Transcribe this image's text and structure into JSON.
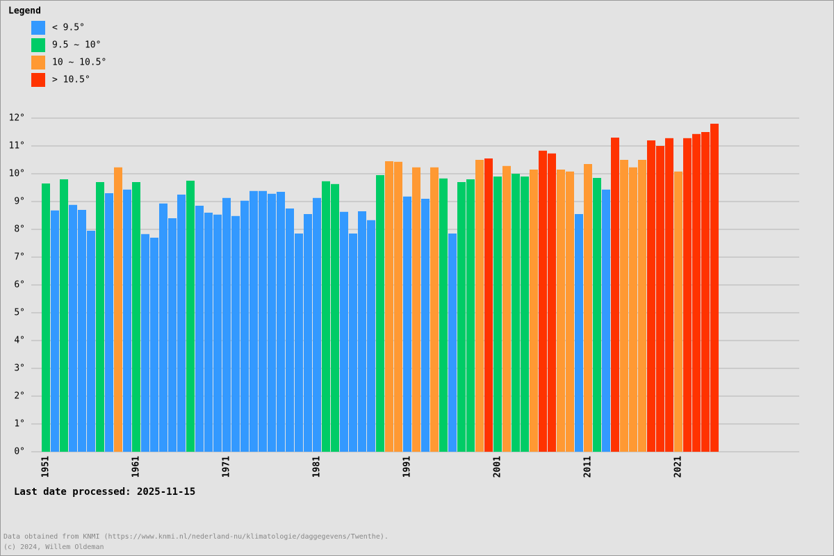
{
  "chart_data": {
    "type": "bar",
    "legend_title": "Legend",
    "note": "Last date processed: 2025-11-15",
    "footer": [
      "Data obtained from KNMI (https://www.knmi.nl/nederland-nu/klimatologie/daggegevens/Twenthe).",
      "(c) 2024, Willem Oldeman"
    ],
    "categories": [
      "1951",
      null,
      null,
      null,
      null,
      null,
      null,
      null,
      null,
      null,
      "1961",
      null,
      null,
      null,
      null,
      null,
      null,
      null,
      null,
      null,
      "1971",
      null,
      null,
      null,
      null,
      null,
      null,
      null,
      null,
      null,
      "1981",
      null,
      null,
      null,
      null,
      null,
      null,
      null,
      null,
      null,
      "1991",
      null,
      null,
      null,
      null,
      null,
      null,
      null,
      null,
      null,
      "2001",
      null,
      null,
      null,
      null,
      null,
      null,
      null,
      null,
      null,
      "2011",
      null,
      null,
      null,
      null,
      null,
      null,
      null,
      null,
      null,
      "2021",
      null,
      null,
      null,
      null
    ],
    "series": [
      {
        "name": "< 9.5°",
        "color": "#3399ff",
        "values": [
          null,
          8.68,
          null,
          8.88,
          8.7,
          7.95,
          null,
          9.3,
          null,
          9.43,
          null,
          7.83,
          7.7,
          8.93,
          8.4,
          9.25,
          null,
          8.85,
          8.6,
          8.53,
          9.13,
          8.48,
          9.03,
          9.38,
          9.38,
          9.28,
          9.35,
          8.75,
          7.85,
          8.55,
          9.13,
          null,
          null,
          8.63,
          7.85,
          8.65,
          8.33,
          null,
          null,
          null,
          9.18,
          null,
          9.1,
          null,
          null,
          7.85,
          null,
          null,
          null,
          null,
          null,
          null,
          null,
          null,
          null,
          null,
          null,
          null,
          null,
          8.55,
          null,
          null,
          9.43,
          null,
          null,
          null,
          null,
          null,
          null,
          null,
          null,
          null,
          null,
          null,
          null
        ]
      },
      {
        "name": "9.5 ~ 10°",
        "color": "#00cc66",
        "values": [
          9.65,
          null,
          9.8,
          null,
          null,
          null,
          9.7,
          null,
          null,
          null,
          9.7,
          null,
          null,
          null,
          null,
          null,
          9.75,
          null,
          null,
          null,
          null,
          null,
          null,
          null,
          null,
          null,
          null,
          null,
          null,
          null,
          null,
          9.73,
          9.63,
          null,
          null,
          null,
          null,
          9.95,
          null,
          null,
          null,
          null,
          null,
          null,
          9.83,
          null,
          9.7,
          9.8,
          null,
          null,
          9.9,
          null,
          10.0,
          9.9,
          null,
          null,
          null,
          null,
          null,
          null,
          null,
          9.85,
          null,
          null,
          null,
          null,
          null,
          null,
          null,
          null,
          null,
          null,
          null,
          null,
          null
        ]
      },
      {
        "name": "10 ~ 10.5°",
        "color": "#ff9933",
        "values": [
          null,
          null,
          null,
          null,
          null,
          null,
          null,
          null,
          10.23,
          null,
          null,
          null,
          null,
          null,
          null,
          null,
          null,
          null,
          null,
          null,
          null,
          null,
          null,
          null,
          null,
          null,
          null,
          null,
          null,
          null,
          null,
          null,
          null,
          null,
          null,
          null,
          null,
          null,
          10.45,
          10.43,
          null,
          10.23,
          null,
          10.23,
          null,
          null,
          null,
          null,
          10.5,
          null,
          null,
          10.28,
          null,
          null,
          10.15,
          null,
          null,
          10.15,
          10.08,
          null,
          10.35,
          null,
          null,
          null,
          10.5,
          10.23,
          10.5,
          null,
          null,
          null,
          10.08,
          null,
          null,
          null,
          null
        ]
      },
      {
        "name": "> 10.5°",
        "color": "#ff3300",
        "values": [
          null,
          null,
          null,
          null,
          null,
          null,
          null,
          null,
          null,
          null,
          null,
          null,
          null,
          null,
          null,
          null,
          null,
          null,
          null,
          null,
          null,
          null,
          null,
          null,
          null,
          null,
          null,
          null,
          null,
          null,
          null,
          null,
          null,
          null,
          null,
          null,
          null,
          null,
          null,
          null,
          null,
          null,
          null,
          null,
          null,
          null,
          null,
          null,
          null,
          10.55,
          null,
          null,
          null,
          null,
          null,
          10.83,
          10.73,
          null,
          null,
          null,
          null,
          null,
          null,
          11.3,
          null,
          null,
          null,
          11.2,
          11.0,
          11.28,
          null,
          11.28,
          11.43,
          11.5,
          11.8
        ]
      }
    ],
    "ylim": [
      0,
      12
    ],
    "yticks": [
      {
        "value": 0,
        "label": "0°"
      },
      {
        "value": 1,
        "label": "1°"
      },
      {
        "value": 2,
        "label": "2°"
      },
      {
        "value": 3,
        "label": "3°"
      },
      {
        "value": 4,
        "label": "4°"
      },
      {
        "value": 5,
        "label": "5°"
      },
      {
        "value": 6,
        "label": "6°"
      },
      {
        "value": 7,
        "label": "7°"
      },
      {
        "value": 8,
        "label": "8°"
      },
      {
        "value": 9,
        "label": "9°"
      },
      {
        "value": 10,
        "label": "10°"
      },
      {
        "value": 11,
        "label": "11°"
      },
      {
        "value": 12,
        "label": "12°"
      }
    ],
    "grid": true
  }
}
